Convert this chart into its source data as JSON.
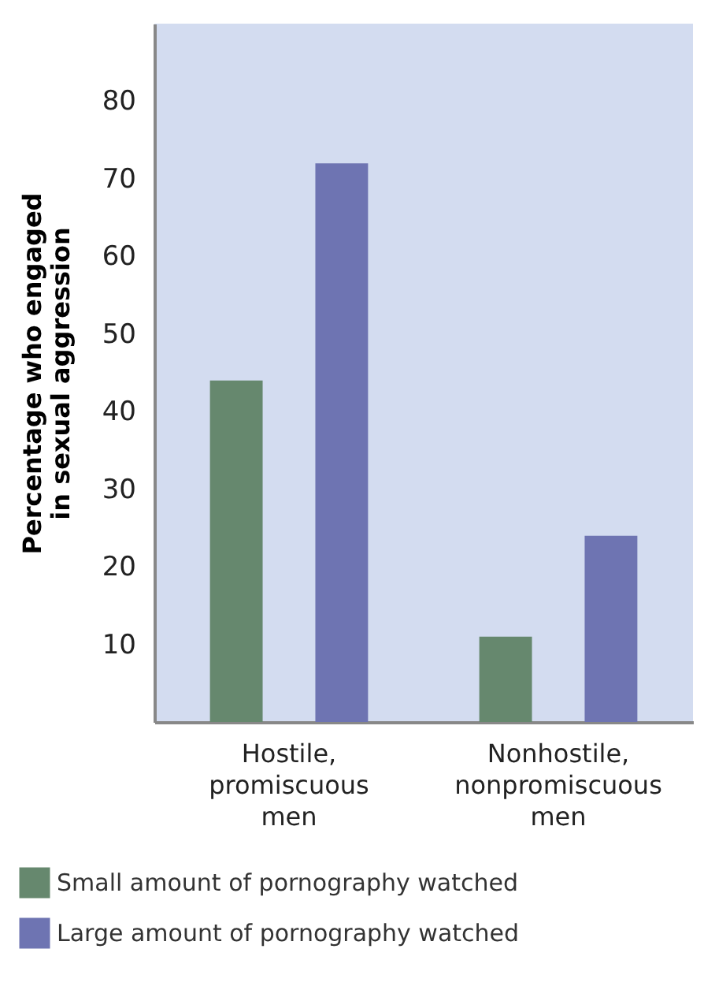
{
  "chart_data": {
    "type": "bar",
    "ylabel": "Percentage who engaged in sexual aggression",
    "categories": [
      "Hostile, promiscuous men",
      "Nonhostile, nonpromiscuous men"
    ],
    "series": [
      {
        "name": "Small amount of pornography watched",
        "color": "#66886e",
        "values": [
          44,
          11
        ]
      },
      {
        "name": "Large amount of pornography watched",
        "color": "#6e74b2",
        "values": [
          72,
          24
        ]
      }
    ],
    "ylim": [
      0,
      90
    ],
    "yticks": [
      10,
      20,
      30,
      40,
      50,
      60,
      70,
      80
    ],
    "grid": false,
    "legend": "bottom"
  }
}
